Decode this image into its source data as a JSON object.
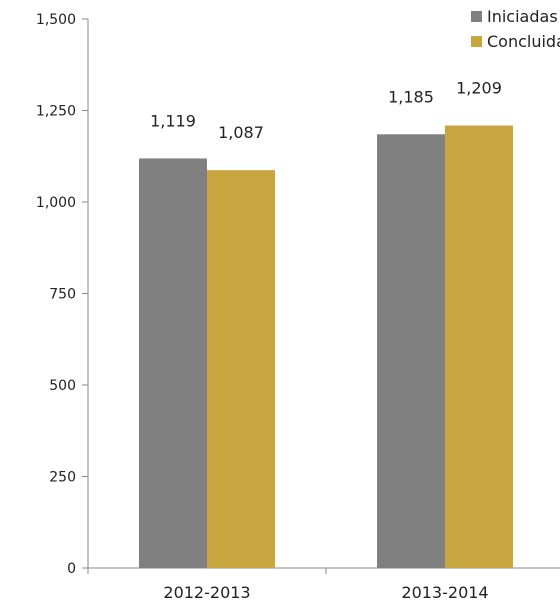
{
  "chart_data": {
    "type": "bar",
    "categories": [
      "2012-2013",
      "2013-2014"
    ],
    "series": [
      {
        "name": "Iniciadas",
        "values": [
          1119,
          1185
        ],
        "color": "#808080"
      },
      {
        "name": "Concluidas",
        "values": [
          1087,
          1209
        ],
        "color": "#C9A53F"
      }
    ],
    "data_labels": [
      [
        "1,119",
        "1,185"
      ],
      [
        "1,087",
        "1,209"
      ]
    ],
    "y_ticks": [
      0,
      250,
      500,
      750,
      "1,000",
      "1,250",
      "1,500"
    ],
    "ylim": [
      0,
      1500
    ],
    "title": "",
    "xlabel": "",
    "ylabel": "",
    "grid": false,
    "legend_position": "top-right"
  }
}
